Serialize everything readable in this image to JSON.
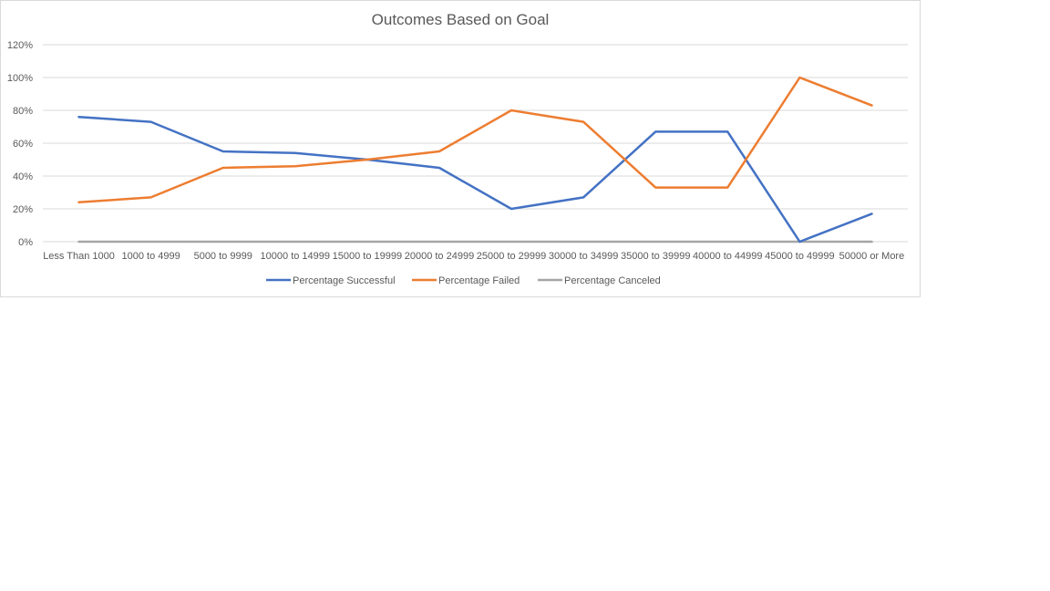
{
  "chart_data": {
    "type": "line",
    "title": "Outcomes Based on Goal",
    "xlabel": "",
    "ylabel": "",
    "categories": [
      "Less Than 1000",
      "1000 to 4999",
      "5000 to 9999",
      "10000 to 14999",
      "15000 to 19999",
      "20000 to 24999",
      "25000 to 29999",
      "30000 to 34999",
      "35000 to 39999",
      "40000 to 44999",
      "45000 to 49999",
      "50000 or More"
    ],
    "ylim": [
      0,
      1.2
    ],
    "yticks": [
      {
        "value": 0,
        "label": "0%"
      },
      {
        "value": 0.2,
        "label": "20%"
      },
      {
        "value": 0.4,
        "label": "40%"
      },
      {
        "value": 0.6,
        "label": "60%"
      },
      {
        "value": 0.8,
        "label": "80%"
      },
      {
        "value": 1.0,
        "label": "100%"
      },
      {
        "value": 1.2,
        "label": "120%"
      }
    ],
    "grid": true,
    "legend_position": "bottom",
    "series": [
      {
        "name": "Percentage Successful",
        "color": "#4472c4",
        "values": [
          0.76,
          0.73,
          0.55,
          0.54,
          0.5,
          0.45,
          0.2,
          0.27,
          0.67,
          0.67,
          0.0,
          0.17
        ]
      },
      {
        "name": "Percentage Failed",
        "color": "#ed7d31",
        "values": [
          0.24,
          0.27,
          0.45,
          0.46,
          0.5,
          0.55,
          0.8,
          0.73,
          0.33,
          0.33,
          1.0,
          0.83
        ]
      },
      {
        "name": "Percentage Canceled",
        "color": "#a5a5a5",
        "values": [
          0,
          0,
          0,
          0,
          0,
          0,
          0,
          0,
          0,
          0,
          0,
          0
        ]
      }
    ]
  }
}
